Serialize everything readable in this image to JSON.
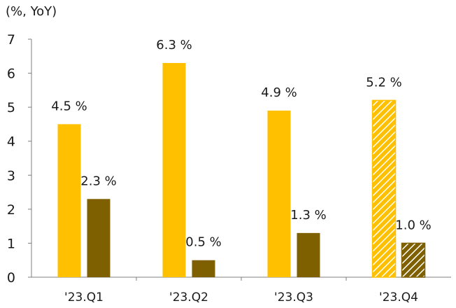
{
  "chart_data": {
    "type": "bar",
    "unit_label": "(%, YoY)",
    "categories": [
      "'23.Q1",
      "'23.Q2",
      "'23.Q3",
      "'23.Q4"
    ],
    "series": [
      {
        "values": [
          4.5,
          6.3,
          4.9,
          5.2
        ],
        "labels": [
          "4.5 %",
          "6.3 %",
          "4.9 %",
          "5.2 %"
        ],
        "color": "#FFC000",
        "hatched": [
          false,
          false,
          false,
          true
        ]
      },
      {
        "values": [
          2.3,
          0.5,
          1.3,
          1.0
        ],
        "labels": [
          "2.3 %",
          "0.5 %",
          "1.3 %",
          "1.0 %"
        ],
        "color": "#7F6000",
        "hatched": [
          false,
          false,
          false,
          true
        ]
      }
    ],
    "yticks": [
      0,
      1,
      2,
      3,
      4,
      5,
      6,
      7
    ],
    "ylim": [
      0,
      7
    ],
    "grid": false,
    "legend": "none"
  }
}
